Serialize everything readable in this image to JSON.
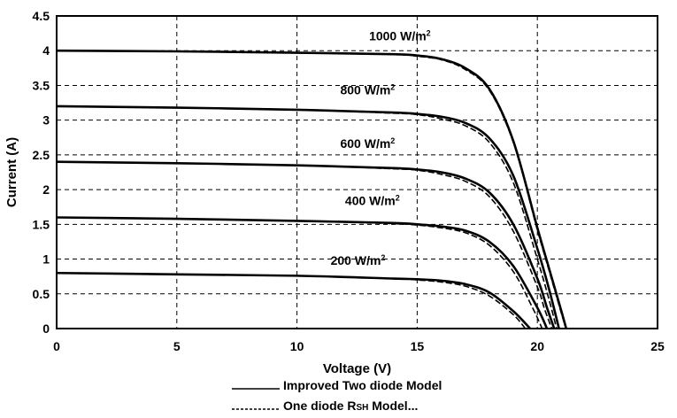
{
  "chart_data": {
    "type": "line",
    "xlabel": "Voltage (V)",
    "ylabel": "Current (A)",
    "xlim": [
      0,
      25
    ],
    "ylim": [
      0,
      4.5
    ],
    "xticks": [
      0,
      5,
      10,
      15,
      20,
      25
    ],
    "yticks": [
      0,
      0.5,
      1,
      1.5,
      2,
      2.5,
      3,
      3.5,
      4,
      4.5
    ],
    "xtick_labels": [
      "0",
      "5",
      "10",
      "15",
      "20",
      "25"
    ],
    "ytick_labels": [
      "0",
      "0.5",
      "1",
      "1.5",
      "2",
      "2.5",
      "3",
      "3.5",
      "4",
      "4.5"
    ],
    "grid": true,
    "legend_position": "bottom",
    "legend": [
      {
        "line": "solid",
        "prefix": "Improved Two diode Model",
        "sc": "",
        "suffix": ""
      },
      {
        "line": "dashed",
        "prefix": "One diode  R",
        "sc": "SH",
        "suffix": " Model..."
      }
    ],
    "irradiance_unit": "W/m",
    "irradiance_unit_sup": "2",
    "curves": [
      {
        "irradiance": "1000",
        "label_at": [
          13,
          4.15
        ],
        "series": [
          {
            "name": "Improved Two diode Model",
            "style": "solid",
            "x": [
              0,
              5,
              10,
              14,
              15,
              16,
              17,
              18,
              19,
              20,
              20.5,
              21,
              21.2
            ],
            "y": [
              4.0,
              3.99,
              3.97,
              3.95,
              3.93,
              3.88,
              3.75,
              3.45,
              2.7,
              1.45,
              0.85,
              0.25,
              0
            ]
          },
          {
            "name": "One diode  RSH Model...",
            "style": "dashed",
            "x": [
              0,
              5,
              10,
              14,
              15,
              16,
              17,
              18,
              19,
              20,
              20.5,
              21,
              21.2
            ],
            "y": [
              4.0,
              3.99,
              3.97,
              3.95,
              3.92,
              3.87,
              3.73,
              3.43,
              2.68,
              1.42,
              0.82,
              0.22,
              0
            ]
          }
        ]
      },
      {
        "irradiance": "800",
        "label_at": [
          11.8,
          3.37
        ],
        "series": [
          {
            "name": "Improved Two diode Model",
            "style": "solid",
            "x": [
              0,
              5,
              10,
              14,
              15,
              16,
              17,
              18,
              19,
              20,
              20.5,
              20.9
            ],
            "y": [
              3.2,
              3.18,
              3.15,
              3.11,
              3.09,
              3.05,
              2.96,
              2.74,
              2.2,
              1.15,
              0.55,
              0
            ]
          },
          {
            "name": "One diode  RSH Model...",
            "style": "dashed",
            "x": [
              0,
              5,
              10,
              14,
              15,
              16,
              17,
              18,
              19,
              20,
              20.5,
              20.8
            ],
            "y": [
              3.2,
              3.18,
              3.15,
              3.1,
              3.08,
              3.02,
              2.92,
              2.68,
              2.1,
              1.0,
              0.4,
              0
            ]
          }
        ]
      },
      {
        "irradiance": "600",
        "label_at": [
          11.8,
          2.6
        ],
        "series": [
          {
            "name": "Improved Two diode Model",
            "style": "solid",
            "x": [
              0,
              5,
              10,
              14,
              15,
              16,
              17,
              18,
              19,
              20,
              20.4,
              20.7
            ],
            "y": [
              2.4,
              2.38,
              2.35,
              2.31,
              2.29,
              2.25,
              2.16,
              1.96,
              1.5,
              0.72,
              0.3,
              0
            ]
          },
          {
            "name": "One diode  RSH Model...",
            "style": "dashed",
            "x": [
              0,
              5,
              10,
              14,
              15,
              16,
              17,
              18,
              19,
              20,
              20.3,
              20.6
            ],
            "y": [
              2.4,
              2.38,
              2.35,
              2.3,
              2.28,
              2.22,
              2.12,
              1.9,
              1.4,
              0.6,
              0.28,
              0
            ]
          }
        ]
      },
      {
        "irradiance": "400",
        "label_at": [
          12,
          1.78
        ],
        "series": [
          {
            "name": "Improved Two diode Model",
            "style": "solid",
            "x": [
              0,
              5,
              10,
              14,
              15,
              16,
              17,
              18,
              19,
              20,
              20.4
            ],
            "y": [
              1.6,
              1.58,
              1.55,
              1.52,
              1.5,
              1.47,
              1.41,
              1.25,
              0.9,
              0.3,
              0
            ]
          },
          {
            "name": "One diode  RSH Model...",
            "style": "dashed",
            "x": [
              0,
              5,
              10,
              14,
              15,
              16,
              17,
              18,
              19,
              19.8,
              20.2
            ],
            "y": [
              1.6,
              1.58,
              1.55,
              1.51,
              1.49,
              1.45,
              1.38,
              1.2,
              0.82,
              0.3,
              0
            ]
          }
        ]
      },
      {
        "irradiance": "200",
        "label_at": [
          11.4,
          0.92
        ],
        "series": [
          {
            "name": "Improved Two diode Model",
            "style": "solid",
            "x": [
              0,
              5,
              10,
              14,
              15,
              16,
              17,
              18,
              19,
              19.7
            ],
            "y": [
              0.8,
              0.78,
              0.76,
              0.72,
              0.71,
              0.69,
              0.64,
              0.52,
              0.25,
              0
            ]
          },
          {
            "name": "One diode  RSH Model...",
            "style": "dashed",
            "x": [
              0,
              5,
              10,
              14,
              15,
              16,
              17,
              18,
              19,
              19.5
            ],
            "y": [
              0.8,
              0.78,
              0.76,
              0.72,
              0.7,
              0.67,
              0.61,
              0.47,
              0.2,
              0
            ]
          }
        ]
      }
    ]
  }
}
